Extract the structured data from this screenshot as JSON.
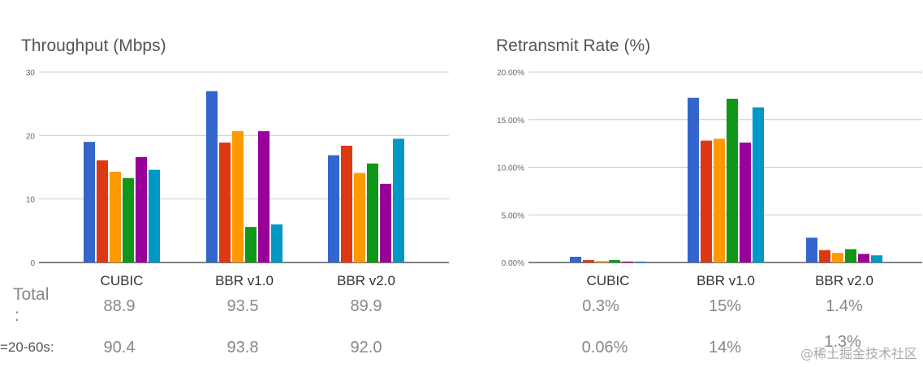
{
  "chart_data": [
    {
      "type": "bar",
      "title": "Throughput (Mbps)",
      "categories": [
        "CUBIC",
        "BBR v1.0",
        "BBR v2.0"
      ],
      "ylim": [
        0,
        30
      ],
      "yticks": [
        "0",
        "10",
        "20",
        "30"
      ],
      "grid": true,
      "series": [
        {
          "values": [
            19.0,
            27.0,
            16.9
          ]
        },
        {
          "values": [
            16.1,
            18.9,
            18.4
          ]
        },
        {
          "values": [
            14.3,
            20.7,
            14.1
          ]
        },
        {
          "values": [
            13.3,
            5.6,
            15.6
          ]
        },
        {
          "values": [
            16.6,
            20.7,
            12.4
          ]
        },
        {
          "values": [
            14.6,
            6.0,
            19.5
          ]
        }
      ]
    },
    {
      "type": "bar",
      "title": "Retransmit Rate (%)",
      "categories": [
        "CUBIC",
        "BBR v1.0",
        "BBR v2.0"
      ],
      "ylim": [
        0,
        20
      ],
      "yticks": [
        "0.00%",
        "5.00%",
        "10.00%",
        "15.00%",
        "20.00%"
      ],
      "grid": true,
      "series": [
        {
          "values": [
            0.6,
            17.3,
            2.6
          ]
        },
        {
          "values": [
            0.25,
            12.8,
            1.3
          ]
        },
        {
          "values": [
            0.15,
            13.0,
            1.0
          ]
        },
        {
          "values": [
            0.25,
            17.2,
            1.4
          ]
        },
        {
          "values": [
            0.1,
            12.6,
            0.9
          ]
        },
        {
          "values": [
            0.1,
            16.3,
            0.75
          ]
        }
      ]
    }
  ],
  "colors": [
    "#3366cc",
    "#dc3912",
    "#ff9900",
    "#109618",
    "#990099",
    "#0099c6"
  ],
  "summary": {
    "row1_label": "Total",
    "row1_label_suffix": ":",
    "row2_label": "=20-60s:",
    "throughput_total": [
      "88.9",
      "93.5",
      "89.9"
    ],
    "throughput_20_60": [
      "90.4",
      "93.8",
      "92.0"
    ],
    "retransmit_total": [
      "0.3%",
      "15%",
      "1.4%"
    ],
    "retransmit_20_60": [
      "0.06%",
      "14%",
      "1.3%"
    ]
  },
  "watermark": "@稀土掘金技术社区"
}
